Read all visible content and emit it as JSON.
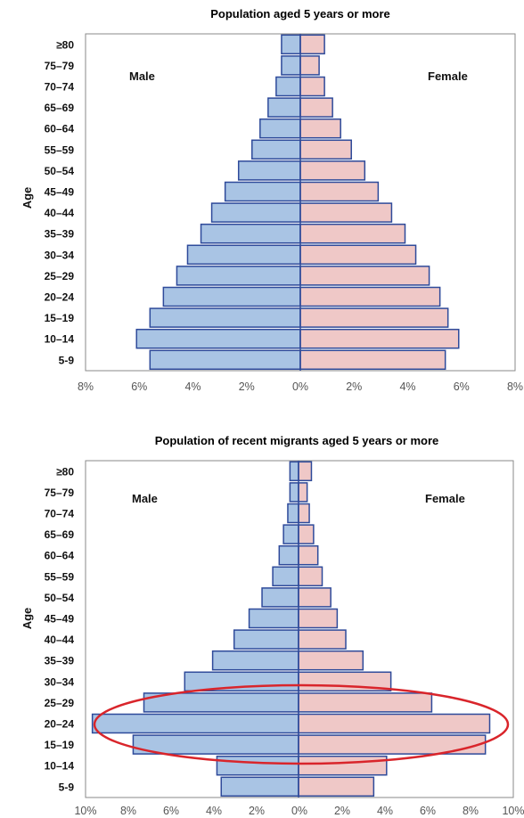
{
  "chart_data": [
    {
      "type": "bar",
      "title": "Population aged 5 years or more",
      "ylabel": "Age",
      "categories": [
        "5-9",
        "10–14",
        "15–19",
        "20–24",
        "25–29",
        "30–34",
        "35–39",
        "40–44",
        "45–49",
        "50–54",
        "55–59",
        "60–64",
        "65–69",
        "70–74",
        "75–79",
        "≥80"
      ],
      "series": [
        {
          "name": "Male",
          "values": [
            5.6,
            6.1,
            5.6,
            5.1,
            4.6,
            4.2,
            3.7,
            3.3,
            2.8,
            2.3,
            1.8,
            1.5,
            1.2,
            0.9,
            0.7,
            0.7
          ],
          "color": "#a9c4e4"
        },
        {
          "name": "Female",
          "values": [
            5.4,
            5.9,
            5.5,
            5.2,
            4.8,
            4.3,
            3.9,
            3.4,
            2.9,
            2.4,
            1.9,
            1.5,
            1.2,
            0.9,
            0.7,
            0.9
          ],
          "color": "#efc8c7"
        }
      ],
      "xlim": [
        -8,
        8
      ],
      "xticks": [
        "8%",
        "6%",
        "4%",
        "2%",
        "0%",
        "2%",
        "4%",
        "6%",
        "8%"
      ],
      "grid": false,
      "legend": "in-plot labels (Male top-left, Female top-right)"
    },
    {
      "type": "bar",
      "title": "Population of recent migrants aged 5 years or more",
      "ylabel": "Age",
      "categories": [
        "5-9",
        "10–14",
        "15–19",
        "20–24",
        "25–29",
        "30–34",
        "35–39",
        "40–44",
        "45–49",
        "50–54",
        "55–59",
        "60–64",
        "65–69",
        "70–74",
        "75–79",
        "≥80"
      ],
      "series": [
        {
          "name": "Male",
          "values": [
            3.6,
            3.8,
            7.7,
            9.6,
            7.2,
            5.3,
            4.0,
            3.0,
            2.3,
            1.7,
            1.2,
            0.9,
            0.7,
            0.5,
            0.4,
            0.4
          ],
          "color": "#a9c4e4"
        },
        {
          "name": "Female",
          "values": [
            3.5,
            4.1,
            8.7,
            8.9,
            6.2,
            4.3,
            3.0,
            2.2,
            1.8,
            1.5,
            1.1,
            0.9,
            0.7,
            0.5,
            0.4,
            0.6
          ],
          "color": "#efc8c7"
        }
      ],
      "xlim": [
        -10,
        10
      ],
      "xticks": [
        "10%",
        "8%",
        "6%",
        "4%",
        "2%",
        "0%",
        "2%",
        "4%",
        "6%",
        "8%",
        "10%"
      ],
      "grid": false,
      "legend": "in-plot labels (Male top-left, Female top-right)",
      "annotation": "red ellipse highlighting ages 15–29"
    }
  ],
  "labels": {
    "male": "Male",
    "female": "Female"
  },
  "colors": {
    "male_fill": "#a9c4e4",
    "female_fill": "#efc8c7",
    "bar_stroke": "#2e4a9a",
    "highlight": "#d9252b"
  }
}
